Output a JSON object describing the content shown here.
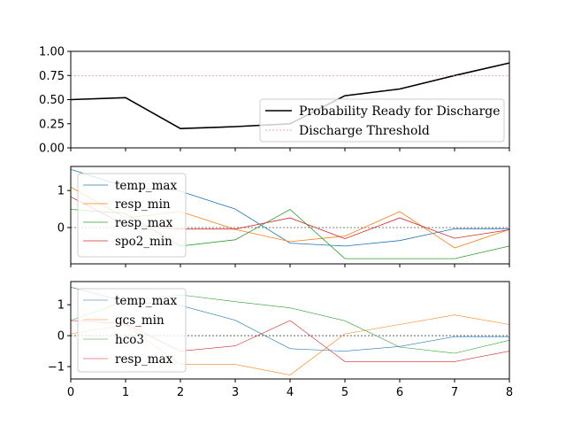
{
  "chart_data": [
    {
      "type": "line",
      "x": [
        0,
        1,
        2,
        3,
        4,
        5,
        6,
        7,
        8
      ],
      "ylim": [
        0,
        1
      ],
      "xlim": [
        0,
        8
      ],
      "yticks": [
        "0.00",
        "0.25",
        "0.50",
        "0.75",
        "1.00"
      ],
      "ytick_values": [
        0,
        0.25,
        0.5,
        0.75,
        1.0
      ],
      "legend_position": "lower-right",
      "series": [
        {
          "name": "Probability Ready for Discharge",
          "color": "#000000",
          "width": 1.6,
          "dash": "",
          "values": [
            0.5,
            0.52,
            0.2,
            0.22,
            0.25,
            0.54,
            0.61,
            0.75,
            0.88
          ]
        },
        {
          "name": "Discharge Threshold",
          "color": "#ff7f7f",
          "width": 0.7,
          "dash": "2,2",
          "values": [
            0.75,
            0.75,
            0.75,
            0.75,
            0.75,
            0.75,
            0.75,
            0.75,
            0.75
          ]
        }
      ]
    },
    {
      "type": "line",
      "x": [
        0,
        1,
        2,
        3,
        4,
        5,
        6,
        7,
        8
      ],
      "ylim": [
        -0.98,
        1.65
      ],
      "xlim": [
        0,
        8
      ],
      "yticks": [
        "0",
        "1"
      ],
      "ytick_values": [
        0,
        1
      ],
      "zero_line": true,
      "legend_position": "upper-left",
      "series": [
        {
          "name": "temp_max",
          "color": "#1f77b4",
          "width": 0.8,
          "dash": "",
          "values": [
            1.57,
            1.1,
            0.98,
            0.5,
            -0.42,
            -0.5,
            -0.35,
            -0.03,
            -0.03
          ]
        },
        {
          "name": "resp_min",
          "color": "#ff7f0e",
          "width": 0.8,
          "dash": "",
          "values": [
            1.09,
            0.26,
            0.43,
            -0.05,
            -0.38,
            -0.23,
            0.43,
            -0.55,
            -0.05
          ]
        },
        {
          "name": "resp_max",
          "color": "#2ca02c",
          "width": 0.8,
          "dash": "",
          "values": [
            0.49,
            0.38,
            -0.5,
            -0.33,
            0.49,
            -0.84,
            -0.84,
            -0.84,
            -0.5
          ]
        },
        {
          "name": "spo2_min",
          "color": "#d62728",
          "width": 0.8,
          "dash": "",
          "values": [
            0.83,
            0.06,
            -0.04,
            -0.04,
            0.26,
            -0.3,
            0.26,
            -0.29,
            -0.06
          ]
        }
      ]
    },
    {
      "type": "line",
      "x": [
        0,
        1,
        2,
        3,
        4,
        5,
        6,
        7,
        8
      ],
      "ylim": [
        -1.4,
        1.75
      ],
      "xlim": [
        0,
        8
      ],
      "xticks": [
        "0",
        "1",
        "2",
        "3",
        "4",
        "5",
        "6",
        "7",
        "8"
      ],
      "yticks": [
        "−1",
        "0",
        "1"
      ],
      "ytick_values": [
        -1,
        0,
        1
      ],
      "zero_line": true,
      "legend_position": "upper-left",
      "series": [
        {
          "name": "temp_max",
          "color": "#1f77b4",
          "width": 0.6,
          "dash": "",
          "values": [
            1.57,
            1.1,
            0.98,
            0.5,
            -0.42,
            -0.5,
            -0.35,
            -0.03,
            -0.03
          ]
        },
        {
          "name": "gcs_min",
          "color": "#ff7f0e",
          "width": 0.6,
          "dash": "",
          "values": [
            0.06,
            0.35,
            -0.93,
            -0.93,
            -1.27,
            0.06,
            0.36,
            0.67,
            0.36
          ]
        },
        {
          "name": "hco3",
          "color": "#2ca02c",
          "width": 0.6,
          "dash": "",
          "values": [
            0.49,
            1.12,
            1.32,
            1.1,
            0.9,
            0.48,
            -0.37,
            -0.57,
            -0.15
          ]
        },
        {
          "name": "resp_max",
          "color": "#d62728",
          "width": 0.6,
          "dash": "",
          "values": [
            0.49,
            0.38,
            -0.5,
            -0.33,
            0.49,
            -0.84,
            -0.84,
            -0.84,
            -0.5
          ]
        }
      ]
    }
  ]
}
